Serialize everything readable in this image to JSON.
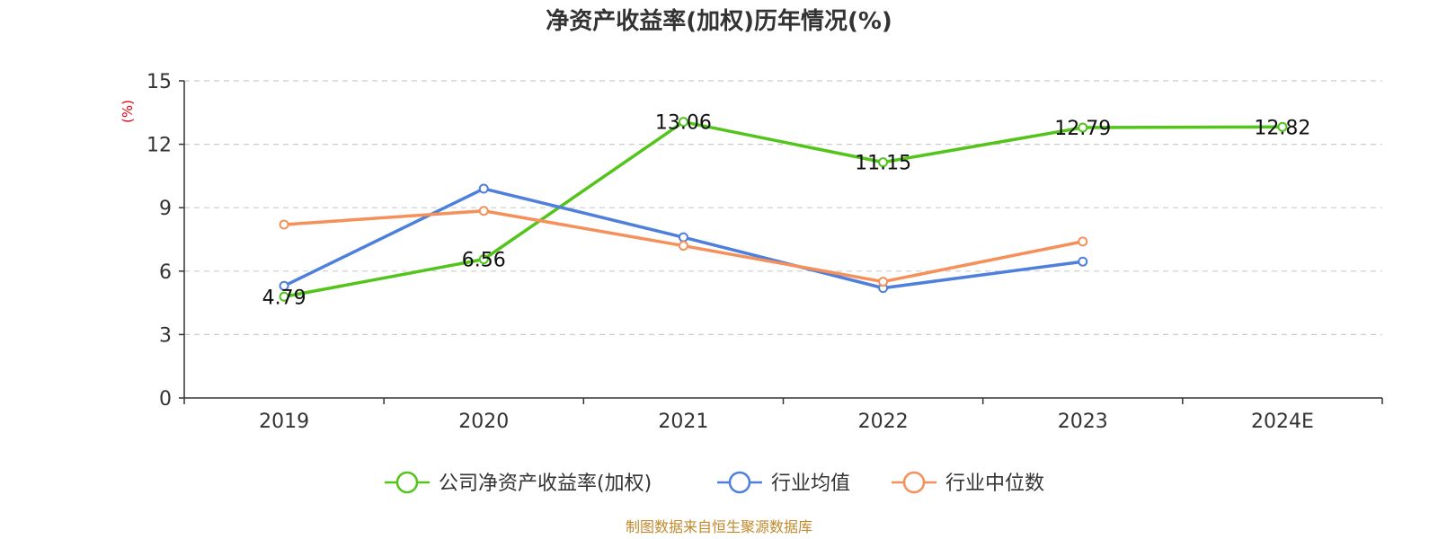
{
  "chart_data": {
    "type": "line",
    "title": "净资产收益率(加权)历年情况(%)",
    "ylabel": "(%)",
    "xlabel": "",
    "categories": [
      "2019",
      "2020",
      "2021",
      "2022",
      "2023",
      "2024E"
    ],
    "ylim": [
      0,
      15
    ],
    "yticks": [
      0,
      3,
      6,
      9,
      12,
      15
    ],
    "grid": true,
    "legend_position": "bottom",
    "series": [
      {
        "name": "公司净资产收益率(加权)",
        "color": "#52c41a",
        "values": [
          4.79,
          6.56,
          13.06,
          11.15,
          12.79,
          12.82
        ],
        "labels": [
          "4.79",
          "6.56",
          "13.06",
          "11.15",
          "12.79",
          "12.82"
        ]
      },
      {
        "name": "行业均值",
        "color": "#4f7fdc",
        "values": [
          5.3,
          9.9,
          7.6,
          5.2,
          6.45,
          null
        ]
      },
      {
        "name": "行业中位数",
        "color": "#f5905a",
        "values": [
          8.2,
          8.85,
          7.2,
          5.5,
          7.4,
          null
        ]
      }
    ],
    "source": "制图数据来自恒生聚源数据库"
  }
}
